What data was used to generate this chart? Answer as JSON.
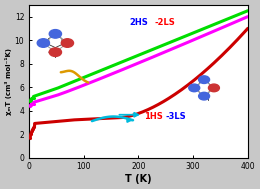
{
  "title": "",
  "xlabel": "T (K)",
  "ylabel": "χₘT (cm³ mol⁻¹K)",
  "xlim": [
    0,
    400
  ],
  "ylim": [
    0,
    13
  ],
  "xticks": [
    0,
    100,
    200,
    300,
    400
  ],
  "yticks": [
    0,
    2,
    4,
    6,
    8,
    10,
    12
  ],
  "bg_color": "#c8c8c8",
  "plot_bg_color": "#ffffff",
  "colors": {
    "green": "#00dd00",
    "magenta": "#ff00ff",
    "red": "#cc0000",
    "orange": "#dd9900",
    "cyan": "#00bbdd"
  },
  "lw": 2.2
}
